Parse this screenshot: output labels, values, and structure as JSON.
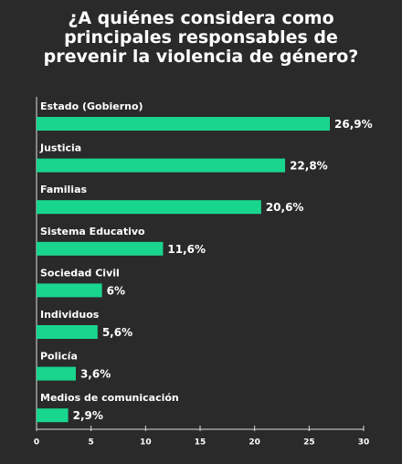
{
  "chart_data": {
    "type": "bar",
    "orientation": "horizontal",
    "title": "¿A quiénes considera como principales responsables de prevenir la violencia de género?",
    "categories": [
      "Estado (Gobierno)",
      "Justicia",
      "Familias",
      "Sistema Educativo",
      "Sociedad Civil",
      "Individuos",
      "Policía",
      "Medios de comunicación"
    ],
    "values": [
      26.9,
      22.8,
      20.6,
      11.6,
      6,
      5.6,
      3.6,
      2.9
    ],
    "value_labels": [
      "26,9%",
      "22,8%",
      "20,6%",
      "11,6%",
      "6%",
      "5,6%",
      "3,6%",
      "2,9%"
    ],
    "color": "#19d68f",
    "xlim": [
      0,
      30
    ],
    "xticks": [
      0,
      5,
      10,
      15,
      20,
      25,
      30
    ]
  }
}
